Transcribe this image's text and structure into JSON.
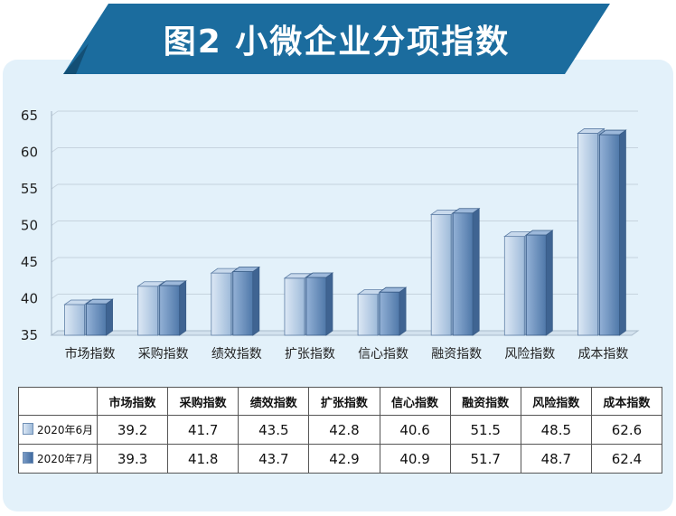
{
  "title": "图2 小微企业分项指数",
  "colors": {
    "banner": "#1b6c9e",
    "series1": "#a9c3e2",
    "series2": "#6e96c6"
  },
  "chart_data": {
    "type": "bar",
    "categories": [
      "市场指数",
      "采购指数",
      "绩效指数",
      "扩张指数",
      "信心指数",
      "融资指数",
      "风险指数",
      "成本指数"
    ],
    "series": [
      {
        "name": "2020年6月",
        "values": [
          39.2,
          41.7,
          43.5,
          42.8,
          40.6,
          51.5,
          48.5,
          62.6
        ]
      },
      {
        "name": "2020年7月",
        "values": [
          39.3,
          41.8,
          43.7,
          42.9,
          40.9,
          51.7,
          48.7,
          62.4
        ]
      }
    ],
    "ylim": [
      35,
      65
    ],
    "yticks": [
      "35",
      "40",
      "45",
      "50",
      "55",
      "60",
      "65"
    ],
    "grid": true,
    "legend": "data-table"
  },
  "table": {
    "headers": [
      "市场指数",
      "采购指数",
      "绩效指数",
      "扩张指数",
      "信心指数",
      "融资指数",
      "风险指数",
      "成本指数"
    ],
    "rows": [
      {
        "label": "2020年6月",
        "values": [
          "39.2",
          "41.7",
          "43.5",
          "42.8",
          "40.6",
          "51.5",
          "48.5",
          "62.6"
        ]
      },
      {
        "label": "2020年7月",
        "values": [
          "39.3",
          "41.8",
          "43.7",
          "42.9",
          "40.9",
          "51.7",
          "48.7",
          "62.4"
        ]
      }
    ]
  }
}
